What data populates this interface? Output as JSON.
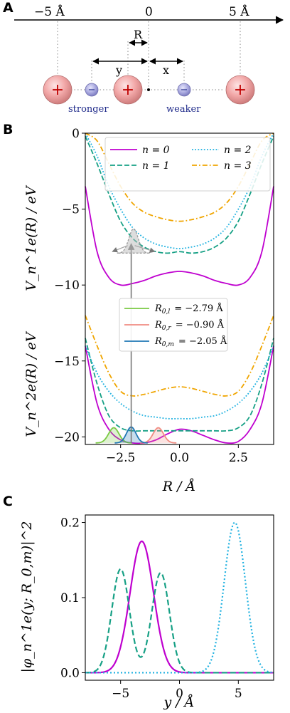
{
  "panels": {
    "a": "A",
    "b": "B",
    "c": "C"
  },
  "diagram": {
    "axis_ticks": [
      "−5 Å",
      "0",
      "5 Å"
    ],
    "labels": {
      "R": "R",
      "y": "y",
      "x": "x"
    },
    "electron_sign": "−",
    "ion_sign": "+",
    "stronger": "stronger",
    "weaker": "weaker"
  },
  "chart_data": [
    {
      "type": "line",
      "xlabel": "R / Å",
      "ylabel_upper": "V_n^1e(R) / eV",
      "ylabel_lower": "V_n^2e(R) / eV",
      "xlim": [
        -4,
        4
      ],
      "ylim": [
        -20.5,
        0
      ],
      "xticks": [
        -2.5,
        0.0,
        2.5
      ],
      "xtick_labels": [
        "−2.5",
        "0.0",
        "2.5"
      ],
      "yticks": [
        0,
        -5,
        -10,
        -15,
        -20
      ],
      "ytick_labels": [
        "0",
        "−5",
        "−10",
        "−15",
        "−20"
      ],
      "legend_position": "top",
      "series": [
        {
          "name": "n = 0",
          "color": "#bf00cf",
          "dash": "solid",
          "x": [
            -4.0,
            -3.5,
            -3.0,
            -2.5,
            -2.0,
            -1.5,
            -1.0,
            -0.5,
            0.0,
            0.5,
            1.0,
            1.5,
            2.0,
            2.5,
            3.0,
            3.5,
            4.0
          ],
          "y1e": [
            -3.5,
            -7.8,
            -9.5,
            -10.0,
            -9.9,
            -9.7,
            -9.4,
            -9.2,
            -9.1,
            -9.2,
            -9.4,
            -9.7,
            -9.9,
            -10.0,
            -9.5,
            -7.8,
            -3.5
          ],
          "y2e": [
            -14.0,
            -17.8,
            -19.5,
            -20.2,
            -20.4,
            -20.4,
            -20.2,
            -19.8,
            -19.5,
            -19.6,
            -19.9,
            -20.2,
            -20.4,
            -20.3,
            -19.5,
            -17.8,
            -14.0
          ]
        },
        {
          "name": "n = 1",
          "color": "#16a085",
          "dash": "dashed",
          "x": [
            -4.0,
            -3.5,
            -3.0,
            -2.5,
            -2.0,
            -1.5,
            -1.0,
            -0.5,
            0.0,
            0.5,
            1.0,
            1.5,
            2.0,
            2.5,
            3.0,
            3.5,
            4.0
          ],
          "y1e": [
            -0.2,
            -2.0,
            -4.0,
            -5.8,
            -6.9,
            -7.5,
            -7.8,
            -7.9,
            -7.8,
            -7.9,
            -7.8,
            -7.5,
            -6.9,
            -5.8,
            -4.0,
            -2.0,
            -0.2
          ],
          "y2e": [
            -13.5,
            -16.5,
            -18.6,
            -19.4,
            -19.6,
            -19.6,
            -19.6,
            -19.6,
            -19.6,
            -19.6,
            -19.6,
            -19.6,
            -19.6,
            -19.4,
            -18.6,
            -16.5,
            -13.5
          ]
        },
        {
          "name": "n = 2",
          "color": "#1fb1e0",
          "dash": "dotted",
          "x": [
            -4.0,
            -3.5,
            -3.0,
            -2.5,
            -2.0,
            -1.5,
            -1.0,
            -0.5,
            0.0,
            0.5,
            1.0,
            1.5,
            2.0,
            2.5,
            3.0,
            3.5,
            4.0
          ],
          "y1e": [
            0.0,
            -1.5,
            -3.5,
            -5.0,
            -6.2,
            -6.9,
            -7.3,
            -7.5,
            -7.6,
            -7.5,
            -7.3,
            -6.9,
            -6.2,
            -5.0,
            -3.5,
            -1.5,
            0.0
          ],
          "y2e": [
            -14.0,
            -15.8,
            -17.0,
            -17.8,
            -18.3,
            -18.6,
            -18.7,
            -18.8,
            -18.8,
            -18.8,
            -18.7,
            -18.6,
            -18.3,
            -17.8,
            -17.0,
            -15.8,
            -14.0
          ]
        },
        {
          "name": "n = 3",
          "color": "#f0a500",
          "dash": "dashdot",
          "x": [
            -4.0,
            -3.5,
            -3.0,
            -2.5,
            -2.0,
            -1.5,
            -1.0,
            -0.5,
            0.0,
            0.5,
            1.0,
            1.5,
            2.0,
            2.5,
            3.0,
            3.5,
            4.0
          ],
          "y1e": [
            0.0,
            -0.5,
            -2.0,
            -3.5,
            -4.6,
            -5.2,
            -5.5,
            -5.7,
            -5.8,
            -5.7,
            -5.5,
            -5.2,
            -4.6,
            -3.5,
            -2.0,
            -0.5,
            0.0
          ],
          "y2e": [
            -12.0,
            -14.0,
            -15.8,
            -17.0,
            -17.3,
            -17.2,
            -17.0,
            -16.8,
            -16.7,
            -16.8,
            -17.0,
            -17.2,
            -17.3,
            -17.0,
            -15.8,
            -14.0,
            -12.0
          ]
        }
      ],
      "wavepackets": [
        {
          "name": "R_{0,l} = −2.79 Å",
          "label_main": "R",
          "label_sub": "0,l",
          "label_value": "= −2.79 Å",
          "color": "#7ac943",
          "center": -2.79,
          "width": 0.22,
          "height": 1.0
        },
        {
          "name": "R_{0,r} = −0.90 Å",
          "label_main": "R",
          "label_sub": "0,r",
          "label_value": "= −0.90 Å",
          "color": "#f08c82",
          "center": -0.9,
          "width": 0.22,
          "height": 1.0
        },
        {
          "name": "R_{0,m} = −2.05 Å",
          "label_main": "R",
          "label_sub": "0,m",
          "label_value": "= −2.05 Å",
          "color": "#1f77b4",
          "center": -2.05,
          "width": 0.2,
          "height": 1.05
        }
      ],
      "arrow": {
        "x": -2.05,
        "y_from": -20.4,
        "y_to": -7.0
      }
    },
    {
      "type": "line",
      "xlabel": "y / Å",
      "ylabel": "|φ_n^1e(y; R_0,m)|^2",
      "xlim": [
        -8,
        8
      ],
      "ylim": [
        -0.01,
        0.21
      ],
      "xticks": [
        -5,
        0,
        5
      ],
      "xtick_labels": [
        "−5",
        "0",
        "5"
      ],
      "yticks": [
        0.0,
        0.1,
        0.2
      ],
      "ytick_labels": [
        "0.0",
        "0.1",
        "0.2"
      ],
      "series": [
        {
          "color": "#bf00cf",
          "dash": "solid",
          "peaks": [
            {
              "mu": -3.2,
              "sigma": 1.0,
              "amp": 0.175
            }
          ]
        },
        {
          "color": "#16a085",
          "dash": "dashed",
          "peaks": [
            {
              "mu": -5.0,
              "sigma": 0.75,
              "amp": 0.138
            },
            {
              "mu": -1.6,
              "sigma": 0.75,
              "amp": 0.133
            }
          ]
        },
        {
          "color": "#1fb1e0",
          "dash": "dotted",
          "peaks": [
            {
              "mu": 4.7,
              "sigma": 0.9,
              "amp": 0.2
            }
          ]
        }
      ]
    }
  ]
}
